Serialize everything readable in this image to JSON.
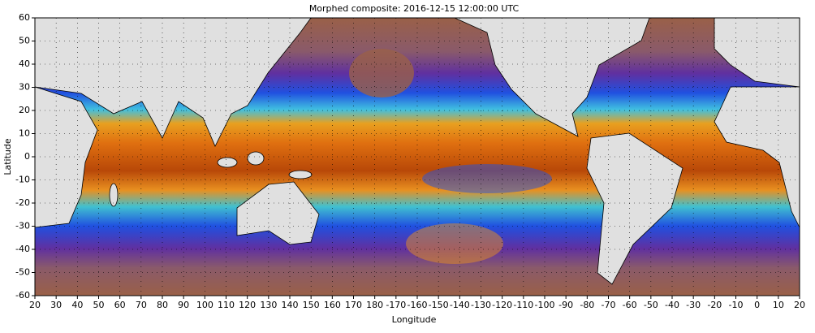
{
  "chart_data": {
    "type": "map",
    "title": "Morphed composite: 2016-12-15 12:00:00 UTC",
    "x_label": "Longitude",
    "y_label": "Latitude",
    "xlim": [
      20,
      380
    ],
    "ylim": [
      -60,
      60
    ],
    "xticks": [
      20,
      30,
      40,
      50,
      60,
      70,
      80,
      90,
      100,
      110,
      120,
      130,
      140,
      150,
      160,
      170,
      180,
      {
        "value": 190,
        "label": "-170"
      },
      {
        "value": 200,
        "label": "-160"
      },
      {
        "value": 210,
        "label": "-150"
      },
      {
        "value": 220,
        "label": "-140"
      },
      {
        "value": 230,
        "label": "-130"
      },
      {
        "value": 240,
        "label": "-120"
      },
      {
        "value": 250,
        "label": "-110"
      },
      {
        "value": 260,
        "label": "-100"
      },
      {
        "value": 270,
        "label": "-90"
      },
      {
        "value": 280,
        "label": "-80"
      },
      {
        "value": 290,
        "label": "-70"
      },
      {
        "value": 300,
        "label": "-60"
      },
      {
        "value": 310,
        "label": "-50"
      },
      {
        "value": 320,
        "label": "-40"
      },
      {
        "value": 330,
        "label": "-30"
      },
      {
        "value": 340,
        "label": "-20"
      },
      {
        "value": 350,
        "label": "-10"
      },
      {
        "value": 360,
        "label": "0"
      },
      {
        "value": 370,
        "label": "10"
      },
      {
        "value": 380,
        "label": "20"
      }
    ],
    "yticks": [
      -60,
      -50,
      -40,
      -30,
      -20,
      -10,
      0,
      10,
      20,
      30,
      40,
      50,
      60
    ],
    "grid": true
  }
}
